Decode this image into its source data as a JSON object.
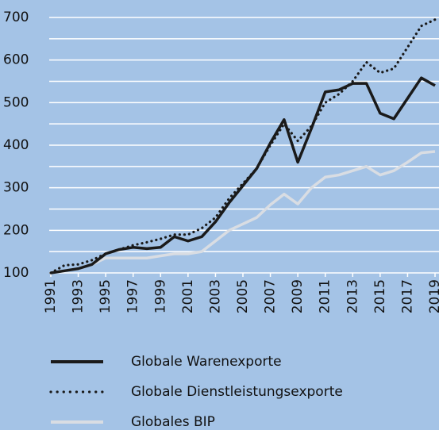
{
  "chart_data": {
    "type": "line",
    "x": [
      1991,
      1992,
      1993,
      1994,
      1995,
      1996,
      1997,
      1998,
      1999,
      2000,
      2001,
      2002,
      2003,
      2004,
      2005,
      2006,
      2007,
      2008,
      2009,
      2010,
      2011,
      2012,
      2013,
      2014,
      2015,
      2016,
      2017,
      2018,
      2019
    ],
    "xlim": [
      1991,
      2019
    ],
    "xticks": [
      1991,
      1993,
      1995,
      1997,
      1999,
      2001,
      2003,
      2005,
      2007,
      2009,
      2011,
      2013,
      2015,
      2017,
      2019
    ],
    "ylim": [
      100,
      700
    ],
    "yticks": [
      100,
      200,
      300,
      400,
      500,
      600,
      700
    ],
    "minor_yticks": [
      150,
      250,
      350,
      450,
      550,
      650
    ],
    "grid": true,
    "series": [
      {
        "name": "Globale Warenexporte",
        "color": "#1a1a1a",
        "style": "solid",
        "values": [
          100,
          105,
          110,
          120,
          145,
          155,
          160,
          157,
          160,
          185,
          175,
          185,
          220,
          265,
          305,
          345,
          405,
          460,
          360,
          440,
          525,
          530,
          545,
          545,
          475,
          462,
          510,
          558,
          540
        ]
      },
      {
        "name": "Globale Dienstleistungsexporte",
        "color": "#1a1a1a",
        "style": "dotted",
        "values": [
          100,
          118,
          120,
          130,
          145,
          155,
          165,
          172,
          180,
          190,
          190,
          205,
          230,
          275,
          310,
          345,
          400,
          450,
          410,
          445,
          500,
          520,
          550,
          595,
          570,
          580,
          630,
          680,
          695
        ]
      },
      {
        "name": "Globales BIP",
        "color": "#d9dde3",
        "style": "solid",
        "values": [
          100,
          105,
          110,
          120,
          135,
          135,
          135,
          135,
          140,
          145,
          145,
          150,
          175,
          200,
          215,
          230,
          260,
          285,
          262,
          300,
          325,
          330,
          340,
          350,
          330,
          340,
          360,
          382,
          385
        ]
      }
    ]
  }
}
